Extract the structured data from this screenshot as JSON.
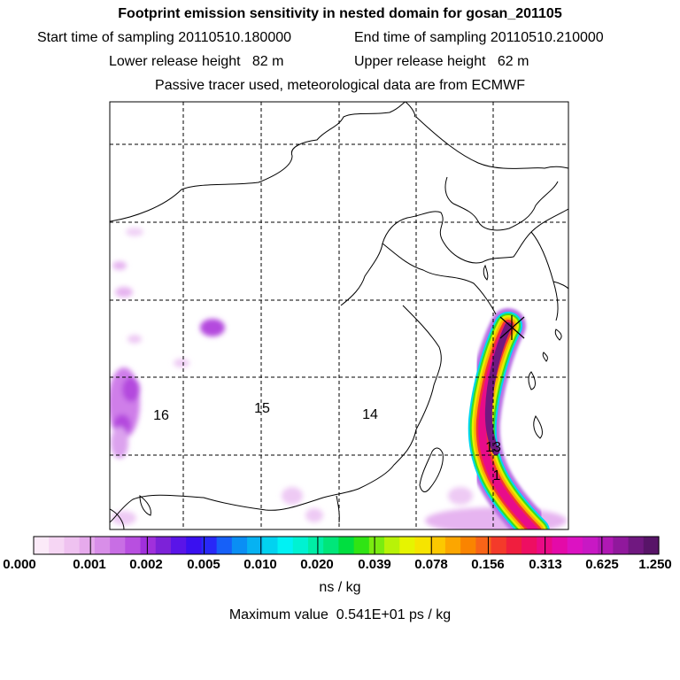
{
  "header": {
    "title": "Footprint emission sensitivity in nested domain for gosan_201105",
    "start_label": "Start time of sampling",
    "start_value": "20110510.180000",
    "end_label": "End time of sampling",
    "end_value": "20110510.210000",
    "lower_label": "Lower release height",
    "lower_value": "82 m",
    "upper_label": "Upper release height",
    "upper_value": "62 m",
    "tracer_note": "Passive tracer used, meteorological data are from ECMWF"
  },
  "map": {
    "day_labels": [
      "16",
      "15",
      "14",
      "13",
      "1"
    ],
    "receptor_marker": "receptor-x-marker",
    "colors": {
      "land_outline": "#000000",
      "grid": "#000000"
    }
  },
  "legend": {
    "tick_labels": [
      "0.000",
      "0.001",
      "0.002",
      "0.005",
      "0.010",
      "0.020",
      "0.039",
      "0.078",
      "0.156",
      "0.313",
      "0.625",
      "1.250"
    ],
    "colors": [
      "#fbeaf8",
      "#f6d6f4",
      "#efc2f0",
      "#e6aaec",
      "#d88ee8",
      "#c86ee4",
      "#b84fe0",
      "#a030dc",
      "#7d22d8",
      "#5a14e8",
      "#3a10f0",
      "#2828f8",
      "#1660f8",
      "#0a8ef4",
      "#06b2f2",
      "#02d2f0",
      "#00f2f4",
      "#00f2d2",
      "#00eea6",
      "#00e67a",
      "#00de40",
      "#30e414",
      "#7aec10",
      "#b8f208",
      "#e6f400",
      "#f6e400",
      "#fcc800",
      "#fca600",
      "#fa8400",
      "#f86418",
      "#f43a2a",
      "#f01e3e",
      "#ee0e62",
      "#ea0a86",
      "#e40aa8",
      "#dc12c2",
      "#c818c4",
      "#b018b4",
      "#90189c",
      "#701880",
      "#581468"
    ],
    "units": "ns / kg",
    "max_label": "Maximum value",
    "max_value": "0.541E+01 ps / kg"
  }
}
